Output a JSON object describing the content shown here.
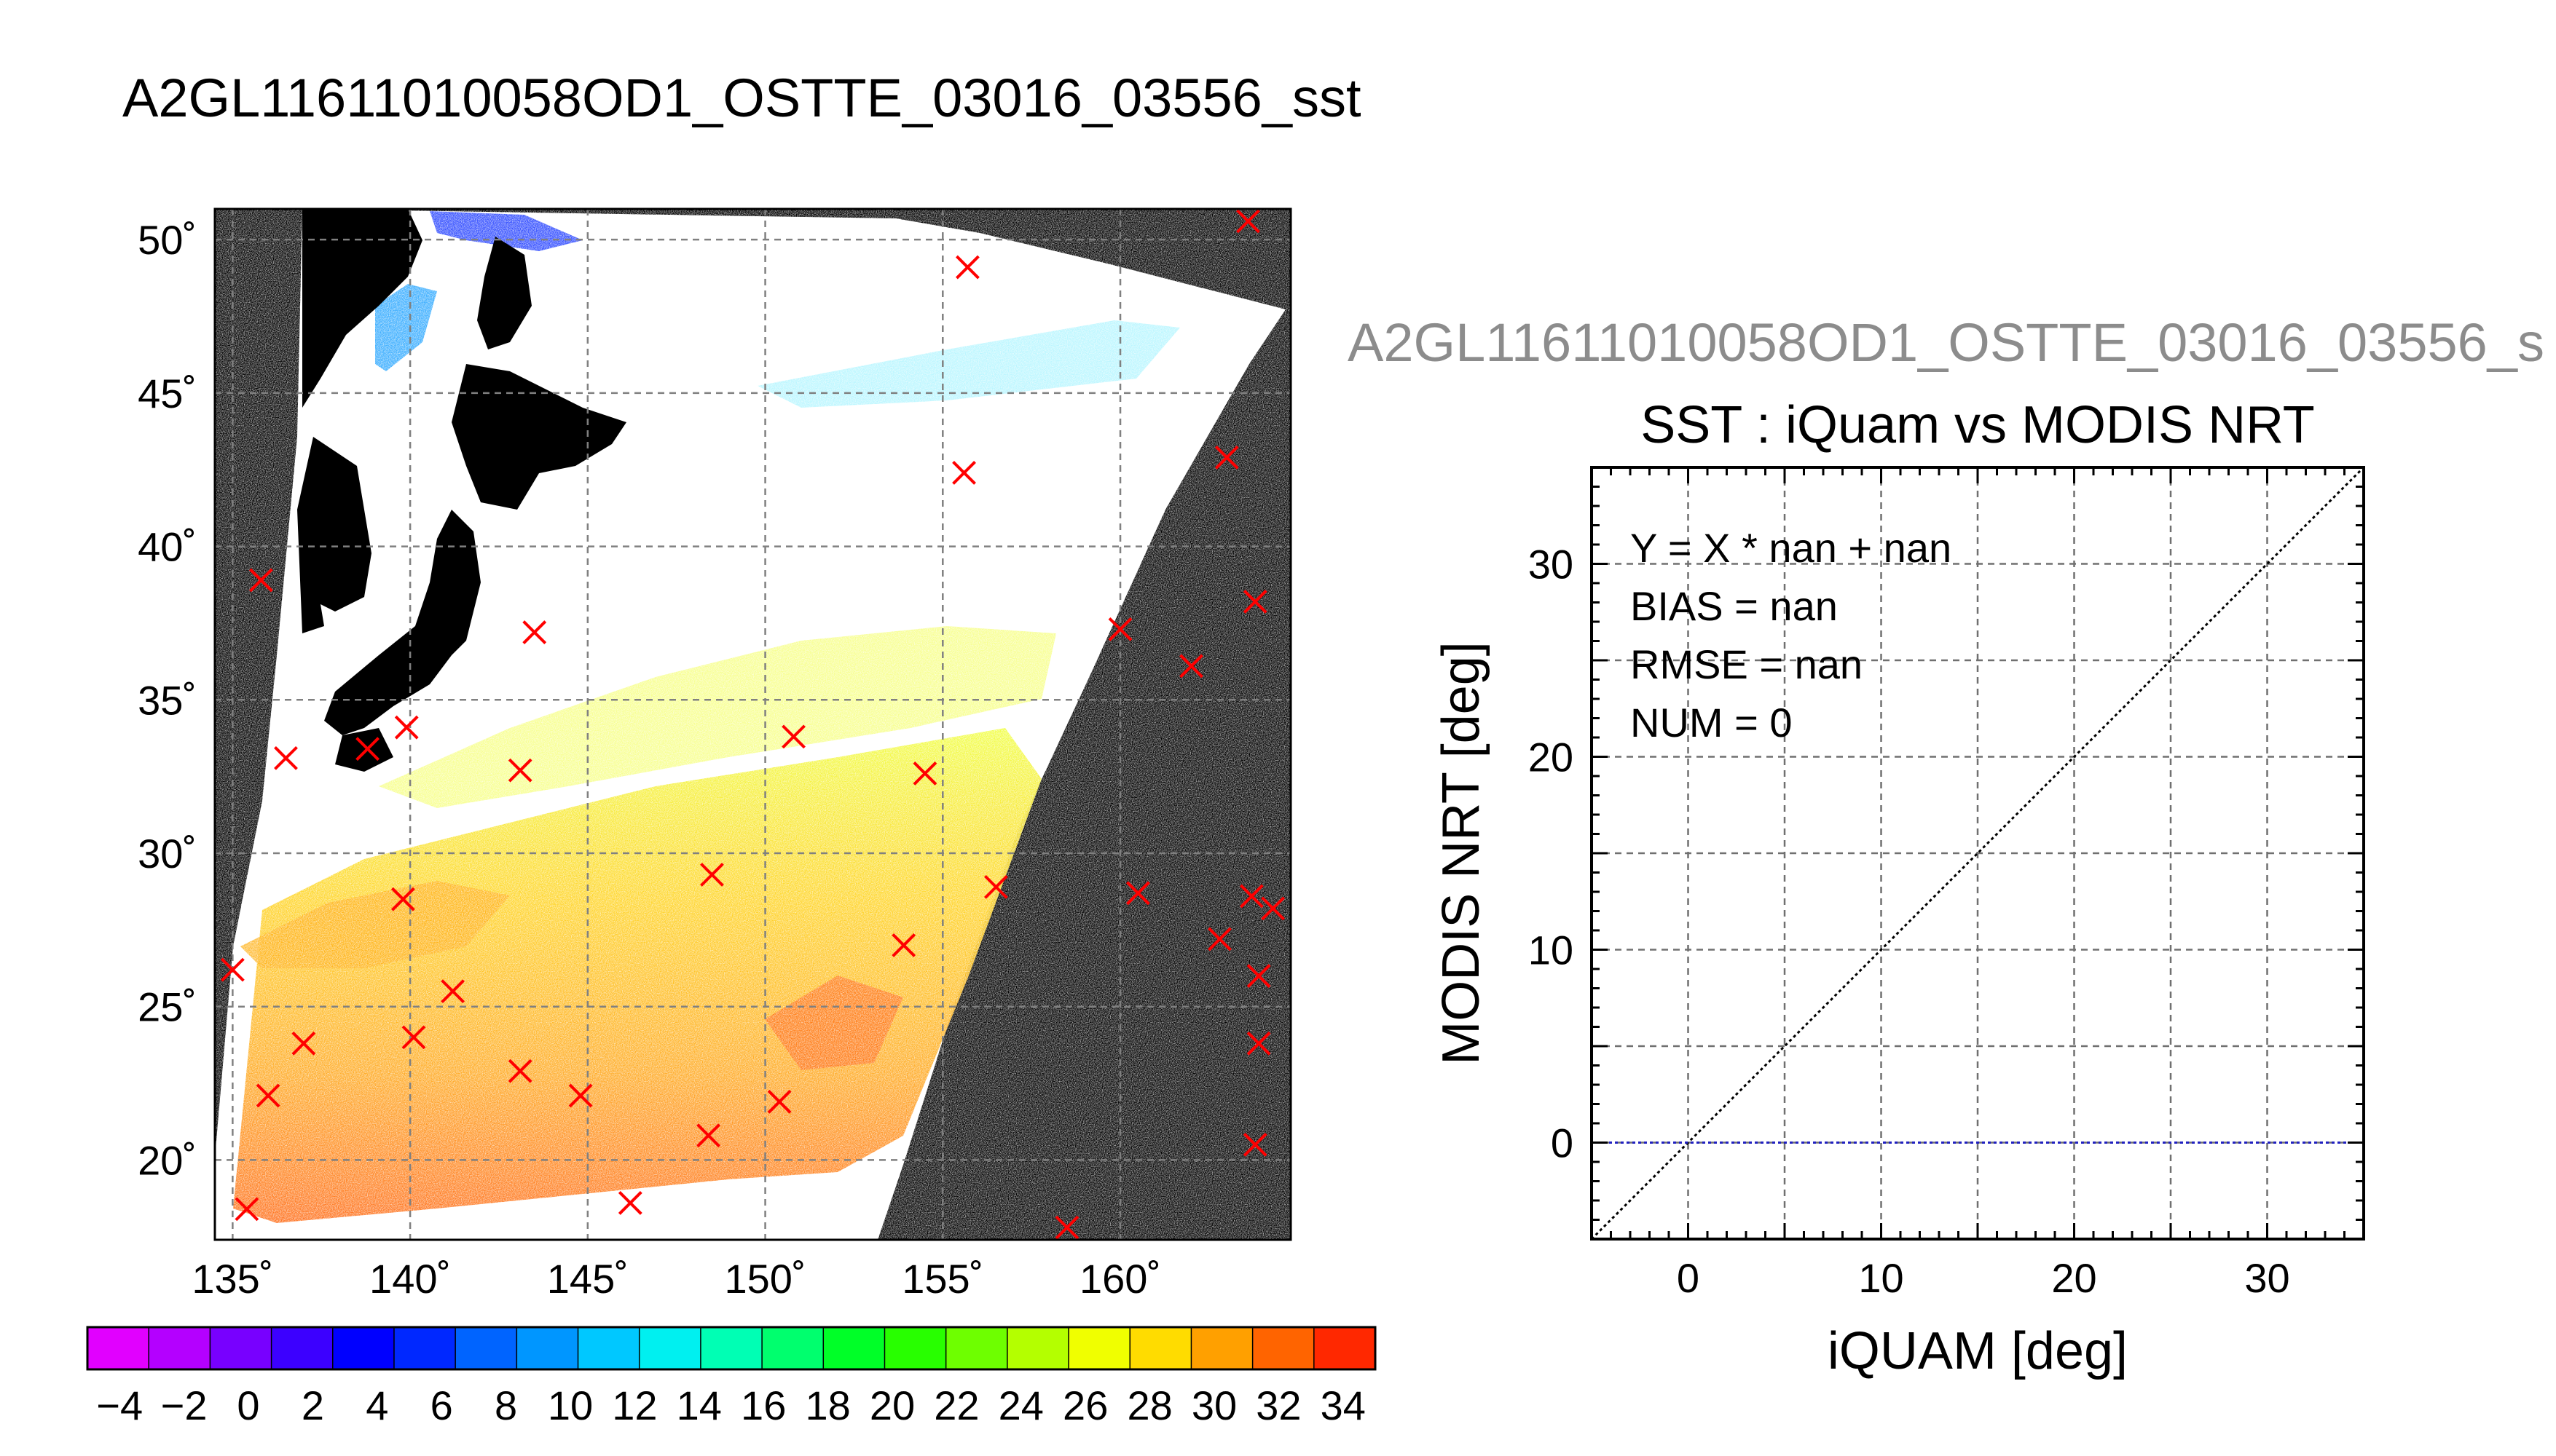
{
  "figure": {
    "title": "A2GL11611010058OD1_OSTTE_03016_03556_sst",
    "subtitle": "A2GL11611010058OD1_OSTTE_03016_03556_s"
  },
  "chart_data": [
    {
      "type": "map",
      "lon_range": [
        134.5,
        164.8
      ],
      "lat_range": [
        17.4,
        51.0
      ],
      "lon_ticks": [
        135,
        140,
        145,
        150,
        155,
        160
      ],
      "lat_ticks": [
        20,
        25,
        30,
        35,
        40,
        45,
        50
      ],
      "lon_tick_labels": [
        "135˚",
        "140˚",
        "145˚",
        "150˚",
        "155˚",
        "160˚"
      ],
      "lat_tick_labels": [
        "20˚",
        "25˚",
        "30˚",
        "35˚",
        "40˚",
        "45˚",
        "50˚"
      ],
      "grid": true,
      "background_color": "#000000",
      "marker_color": "#ff0000",
      "points": [
        [
          163.6,
          50.6
        ],
        [
          155.7,
          49.1
        ],
        [
          155.6,
          42.4
        ],
        [
          163.0,
          42.9
        ],
        [
          135.8,
          38.9
        ],
        [
          143.5,
          37.2
        ],
        [
          160.0,
          37.3
        ],
        [
          163.8,
          38.2
        ],
        [
          162.0,
          36.1
        ],
        [
          136.5,
          33.1
        ],
        [
          138.8,
          33.4
        ],
        [
          139.9,
          34.1
        ],
        [
          143.1,
          32.7
        ],
        [
          150.8,
          33.8
        ],
        [
          154.5,
          32.6
        ],
        [
          139.8,
          28.5
        ],
        [
          148.5,
          29.3
        ],
        [
          156.5,
          28.9
        ],
        [
          160.5,
          28.7
        ],
        [
          163.7,
          28.6
        ],
        [
          164.3,
          28.2
        ],
        [
          135.0,
          26.2
        ],
        [
          141.2,
          25.5
        ],
        [
          153.9,
          27.0
        ],
        [
          162.8,
          27.2
        ],
        [
          163.9,
          26.0
        ],
        [
          137.0,
          23.8
        ],
        [
          140.1,
          24.0
        ],
        [
          163.9,
          23.8
        ],
        [
          136.0,
          22.1
        ],
        [
          143.1,
          22.9
        ],
        [
          144.8,
          22.1
        ],
        [
          150.4,
          21.9
        ],
        [
          148.4,
          20.8
        ],
        [
          163.8,
          20.5
        ],
        [
          135.4,
          18.4
        ],
        [
          146.2,
          18.6
        ],
        [
          158.5,
          17.8
        ]
      ]
    },
    {
      "type": "scatter",
      "title": "SST : iQuam vs MODIS NRT",
      "xlabel": "iQUAM [deg]",
      "ylabel": "MODIS NRT [deg]",
      "xlim": [
        -5,
        35
      ],
      "ylim": [
        -5,
        35
      ],
      "xticks": [
        0,
        10,
        20,
        30
      ],
      "yticks": [
        0,
        10,
        20,
        30
      ],
      "grid": true,
      "grid_step": 5,
      "series": [],
      "reference_lines": [
        {
          "kind": "identity",
          "color": "#000000",
          "style": "dotted"
        },
        {
          "kind": "horizontal",
          "y": 0,
          "color": "#2020c0",
          "style": "dotted"
        }
      ],
      "stats": [
        "Y = X * nan + nan",
        "BIAS = nan",
        "RMSE = nan",
        "NUM = 0"
      ]
    }
  ],
  "colorbar": {
    "min": -5,
    "max": 35,
    "colors": [
      "#e100ff",
      "#b400ff",
      "#7800ff",
      "#3c00ff",
      "#0000ff",
      "#0028ff",
      "#0064ff",
      "#0096ff",
      "#00c8ff",
      "#00f0f0",
      "#00ffb4",
      "#00ff6e",
      "#00ff28",
      "#28ff00",
      "#6eff00",
      "#b4ff00",
      "#f0ff00",
      "#ffdc00",
      "#ffa000",
      "#ff6400",
      "#ff2800"
    ],
    "labels": [
      "−4",
      "−2",
      "0",
      "2",
      "4",
      "6",
      "8",
      "10",
      "12",
      "14",
      "16",
      "18",
      "20",
      "22",
      "24",
      "26",
      "28",
      "30",
      "32",
      "34"
    ]
  }
}
